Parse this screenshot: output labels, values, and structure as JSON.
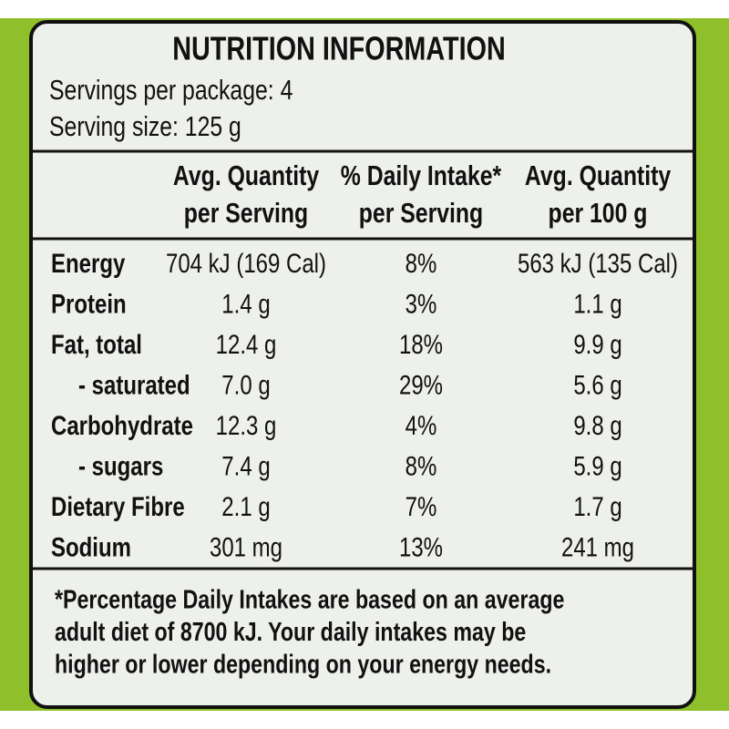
{
  "title": "NUTRITION INFORMATION",
  "servings": "Servings per package: 4",
  "serving_size": "Serving size: 125 g",
  "table": {
    "columns": [
      [
        "Avg. Quantity",
        "per Serving"
      ],
      [
        "% Daily Intake*",
        "per Serving"
      ],
      [
        "Avg. Quantity",
        "per 100 g"
      ]
    ],
    "rows": [
      [
        "Energy",
        "704 kJ (169 Cal)",
        "8%",
        "563 kJ (135 Cal)"
      ],
      [
        "Protein",
        "1.4 g",
        "3%",
        "1.1 g"
      ],
      [
        "Fat, total",
        "12.4 g",
        "18%",
        "9.9 g"
      ],
      [
        "- saturated",
        "7.0 g",
        "29%",
        "5.6 g"
      ],
      [
        "Carbohydrate",
        "12.3 g",
        "4%",
        "9.8 g"
      ],
      [
        "- sugars",
        "7.4 g",
        "8%",
        "5.9 g"
      ],
      [
        "Dietary Fibre",
        "2.1 g",
        "7%",
        "1.7 g"
      ],
      [
        "Sodium",
        "301 mg",
        "13%",
        "241 mg"
      ]
    ]
  },
  "footnote": [
    "*Percentage Daily Intakes are based on an average",
    "adult diet of 8700 kJ. Your daily intakes may be",
    "higher or lower depending on your energy needs."
  ]
}
